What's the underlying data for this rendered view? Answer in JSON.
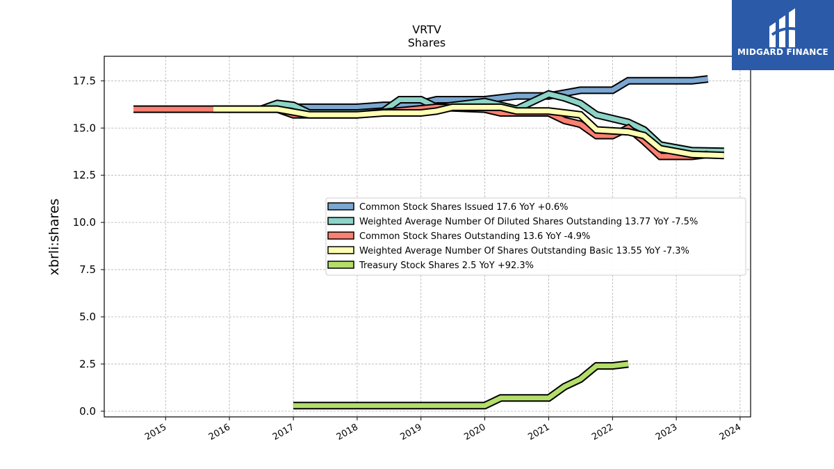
{
  "chart_data": {
    "type": "line",
    "title": "VRTV",
    "subtitle": "Shares",
    "ylabel": "xbrli:shares",
    "xlabel": "",
    "ylim": [
      -0.3,
      18.8
    ],
    "xlim": [
      "2014-01-15",
      "2024-03-01"
    ],
    "y_ticks": [
      "0.0",
      "2.5",
      "5.0",
      "7.5",
      "10.0",
      "12.5",
      "15.0",
      "17.5"
    ],
    "x_ticks": [
      "2015",
      "2016",
      "2017",
      "2018",
      "2019",
      "2020",
      "2021",
      "2022",
      "2023",
      "2024"
    ],
    "grid": true,
    "legend_position": "center-right",
    "series": [
      {
        "name": "Common Stock Shares Issued  17.6 YoY +0.6%",
        "color": "#7ba7d0",
        "points": [
          [
            "2016-10-01",
            16.1
          ],
          [
            "2017-01-01",
            16.1
          ],
          [
            "2017-06-01",
            16.1
          ],
          [
            "2018-01-01",
            16.1
          ],
          [
            "2018-06-01",
            16.2
          ],
          [
            "2018-09-01",
            16.2
          ],
          [
            "2019-01-01",
            16.3
          ],
          [
            "2019-04-01",
            16.5
          ],
          [
            "2020-01-01",
            16.5
          ],
          [
            "2020-07-01",
            16.7
          ],
          [
            "2021-01-01",
            16.7
          ],
          [
            "2021-07-01",
            17.0
          ],
          [
            "2022-01-01",
            17.0
          ],
          [
            "2022-04-01",
            17.5
          ],
          [
            "2023-04-01",
            17.5
          ],
          [
            "2023-07-01",
            17.6
          ]
        ]
      },
      {
        "name": "Weighted Average Number Of Diluted Shares Outstanding  13.77 YoY -7.5%",
        "color": "#8dd3c7",
        "points": [
          [
            "2016-07-01",
            16.0
          ],
          [
            "2016-10-01",
            16.3
          ],
          [
            "2017-01-01",
            16.2
          ],
          [
            "2017-04-01",
            15.8
          ],
          [
            "2018-01-01",
            15.8
          ],
          [
            "2018-06-01",
            15.9
          ],
          [
            "2018-09-01",
            16.5
          ],
          [
            "2019-01-01",
            16.5
          ],
          [
            "2019-04-01",
            16.1
          ],
          [
            "2020-01-01",
            16.4
          ],
          [
            "2020-04-01",
            16.2
          ],
          [
            "2020-07-01",
            16.0
          ],
          [
            "2021-01-01",
            16.8
          ],
          [
            "2021-04-01",
            16.6
          ],
          [
            "2021-07-01",
            16.3
          ],
          [
            "2021-10-01",
            15.7
          ],
          [
            "2022-04-01",
            15.3
          ],
          [
            "2022-07-01",
            14.9
          ],
          [
            "2022-10-01",
            14.1
          ],
          [
            "2023-04-01",
            13.8
          ],
          [
            "2023-10-01",
            13.77
          ]
        ]
      },
      {
        "name": "Common Stock Shares Outstanding  13.6 YoY -4.9%",
        "color": "#fb8072",
        "points": [
          [
            "2014-07-01",
            16.0
          ],
          [
            "2016-10-01",
            16.0
          ],
          [
            "2017-01-01",
            15.7
          ],
          [
            "2018-01-01",
            15.7
          ],
          [
            "2019-04-01",
            16.1
          ],
          [
            "2020-01-01",
            16.0
          ],
          [
            "2020-04-01",
            15.8
          ],
          [
            "2021-01-01",
            15.8
          ],
          [
            "2021-04-01",
            15.4
          ],
          [
            "2021-07-01",
            15.2
          ],
          [
            "2021-10-01",
            14.6
          ],
          [
            "2022-01-01",
            14.6
          ],
          [
            "2022-04-01",
            15.0
          ],
          [
            "2022-07-01",
            14.3
          ],
          [
            "2022-10-01",
            13.5
          ],
          [
            "2023-04-01",
            13.5
          ],
          [
            "2023-07-01",
            13.6
          ]
        ]
      },
      {
        "name": "Weighted Average Number Of Shares Outstanding Basic  13.55 YoY -7.3%",
        "color": "#ffffb3",
        "points": [
          [
            "2015-10-01",
            16.0
          ],
          [
            "2016-10-01",
            16.0
          ],
          [
            "2017-04-01",
            15.7
          ],
          [
            "2018-01-01",
            15.7
          ],
          [
            "2018-06-01",
            15.8
          ],
          [
            "2019-01-01",
            15.8
          ],
          [
            "2019-04-01",
            15.9
          ],
          [
            "2019-07-01",
            16.1
          ],
          [
            "2020-01-01",
            16.1
          ],
          [
            "2020-04-01",
            16.1
          ],
          [
            "2020-07-01",
            15.9
          ],
          [
            "2021-01-01",
            15.9
          ],
          [
            "2021-07-01",
            15.7
          ],
          [
            "2021-10-01",
            14.9
          ],
          [
            "2022-04-01",
            14.8
          ],
          [
            "2022-07-01",
            14.6
          ],
          [
            "2022-10-01",
            13.9
          ],
          [
            "2023-04-01",
            13.6
          ],
          [
            "2023-10-01",
            13.55
          ]
        ]
      },
      {
        "name": "Treasury Stock Shares  2.5 YoY +92.3%",
        "color": "#b3de69",
        "points": [
          [
            "2017-01-01",
            0.3
          ],
          [
            "2020-01-01",
            0.3
          ],
          [
            "2020-04-01",
            0.7
          ],
          [
            "2021-01-01",
            0.7
          ],
          [
            "2021-04-01",
            1.3
          ],
          [
            "2021-07-01",
            1.7
          ],
          [
            "2021-10-01",
            2.4
          ],
          [
            "2022-01-01",
            2.4
          ],
          [
            "2022-04-01",
            2.5
          ]
        ]
      }
    ]
  },
  "logo": {
    "text": "MIDGARD FINANCE",
    "icon": "midgard-logo-icon"
  }
}
